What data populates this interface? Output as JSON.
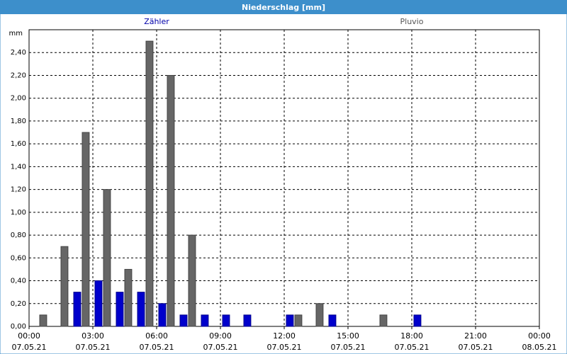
{
  "chart_data": {
    "type": "bar",
    "title": "Niederschlag [mm]",
    "y_label": "mm",
    "x": [
      0,
      1,
      2,
      3,
      4,
      5,
      6,
      7,
      8,
      9,
      10,
      11,
      12,
      13,
      14,
      15,
      16,
      17,
      18,
      19,
      20,
      21,
      22,
      23
    ],
    "series": [
      {
        "name": "Zähler",
        "color": "#0000cc",
        "values": [
          0,
          0,
          0.3,
          0.4,
          0.3,
          0.3,
          0.2,
          0.1,
          0.1,
          0.1,
          0.1,
          0,
          0.1,
          0,
          0.1,
          0,
          0,
          0,
          0.1,
          0,
          0,
          0,
          0,
          0
        ]
      },
      {
        "name": "Pluvio",
        "color": "#666666",
        "values": [
          0.1,
          0.7,
          1.7,
          1.2,
          0.5,
          2.5,
          2.2,
          0.8,
          0,
          0,
          0,
          0,
          0.1,
          0.2,
          0,
          0,
          0.1,
          0,
          0,
          0,
          0,
          0,
          0,
          0
        ]
      }
    ],
    "xlim": [
      0,
      24
    ],
    "xticks": [
      {
        "value": 0,
        "label": "00:00",
        "date": "07.05.21"
      },
      {
        "value": 3,
        "label": "03:00",
        "date": "07.05.21"
      },
      {
        "value": 6,
        "label": "06:00",
        "date": "07.05.21"
      },
      {
        "value": 9,
        "label": "09:00",
        "date": "07.05.21"
      },
      {
        "value": 12,
        "label": "12:00",
        "date": "07.05.21"
      },
      {
        "value": 15,
        "label": "15:00",
        "date": "07.05.21"
      },
      {
        "value": 18,
        "label": "18:00",
        "date": "07.05.21"
      },
      {
        "value": 21,
        "label": "21:00",
        "date": "07.05.21"
      },
      {
        "value": 24,
        "label": "00:00",
        "date": "08.05.21"
      }
    ],
    "ylim": [
      0,
      2.6
    ],
    "yticks": [
      {
        "value": 0,
        "label": "0,00"
      },
      {
        "value": 0.2,
        "label": "0,20"
      },
      {
        "value": 0.4,
        "label": "0,40"
      },
      {
        "value": 0.6,
        "label": "0,60"
      },
      {
        "value": 0.8,
        "label": "0,80"
      },
      {
        "value": 1.0,
        "label": "1,00"
      },
      {
        "value": 1.2,
        "label": "1,20"
      },
      {
        "value": 1.4,
        "label": "1,40"
      },
      {
        "value": 1.6,
        "label": "1,60"
      },
      {
        "value": 1.8,
        "label": "1,80"
      },
      {
        "value": 2.0,
        "label": "2,00"
      },
      {
        "value": 2.2,
        "label": "2,20"
      },
      {
        "value": 2.4,
        "label": "2,40"
      }
    ],
    "grid": true
  }
}
